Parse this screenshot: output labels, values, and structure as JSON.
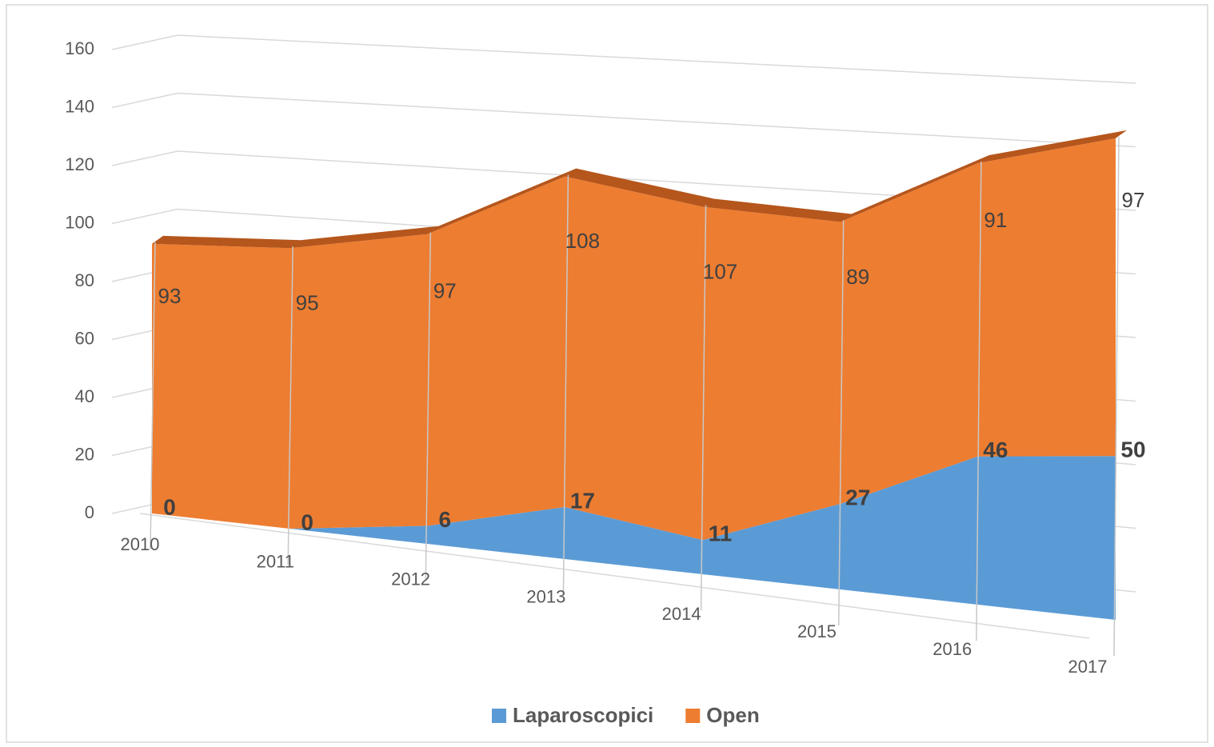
{
  "chart_data": {
    "type": "area3d",
    "stacked": true,
    "categories": [
      "2010",
      "2011",
      "2012",
      "2013",
      "2014",
      "2015",
      "2016",
      "2017"
    ],
    "series": [
      {
        "name": "Laparoscopici",
        "color": "#5b9bd5",
        "values": [
          0,
          0,
          6,
          17,
          11,
          27,
          46,
          50
        ]
      },
      {
        "name": "Open",
        "color": "#ed7d31",
        "values": [
          93,
          95,
          97,
          108,
          107,
          89,
          91,
          97
        ]
      }
    ],
    "ylim": [
      0,
      160
    ],
    "yticks": [
      0,
      20,
      40,
      60,
      80,
      100,
      120,
      140,
      160
    ],
    "grid": true,
    "legend": "bottom"
  }
}
